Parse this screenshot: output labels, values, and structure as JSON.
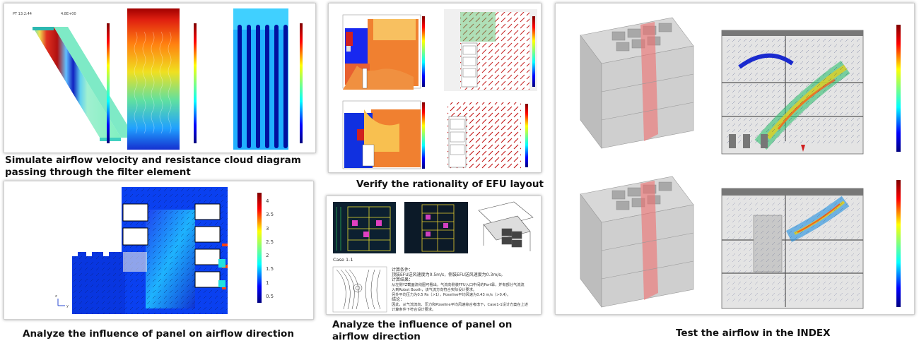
{
  "captions": {
    "filter": "Simulate airflow velocity and resistance cloud diagram passing through the filter element",
    "efu": "Verify the rationality of EFU layout",
    "panel_left": "Analyze the influence of panel on airflow direction",
    "panel_mid": "Analyze the influence of panel on airflow direction",
    "index": "Test the airflow in the INDEX"
  },
  "scale_bar": {
    "ticks": [
      "4",
      "3.5",
      "3",
      "2.5",
      "2",
      "1.5",
      "1",
      "0.5"
    ]
  },
  "case_doc": {
    "case_label": "Case 1-1",
    "lines": [
      "计算条件：",
      "顶装EFU送风速度为0.5m/s，侧装EFU送风速度为0.3m/s。",
      "计算结果：",
      "从左侧YZ截面流线图可看出，气流向侧装FFU入口中间的Port靠，并有部分气流流",
      "入到Robot Booth，该气流方向符合实际设计要求。",
      "另外平均压力为0.5 Pa（>1），Poseline平均风速为0.43 m/s（>0.4）。",
      "结论：",
      "因此，从气流流向、压力和Poseline平均风速综合考虑下，Case1-1设计方案在上述",
      "计算条件下符合设计要求。"
    ]
  },
  "colors": {
    "jet_dark_blue": "#00007f",
    "jet_red": "#b00000",
    "panel_pink": "#e05060"
  }
}
